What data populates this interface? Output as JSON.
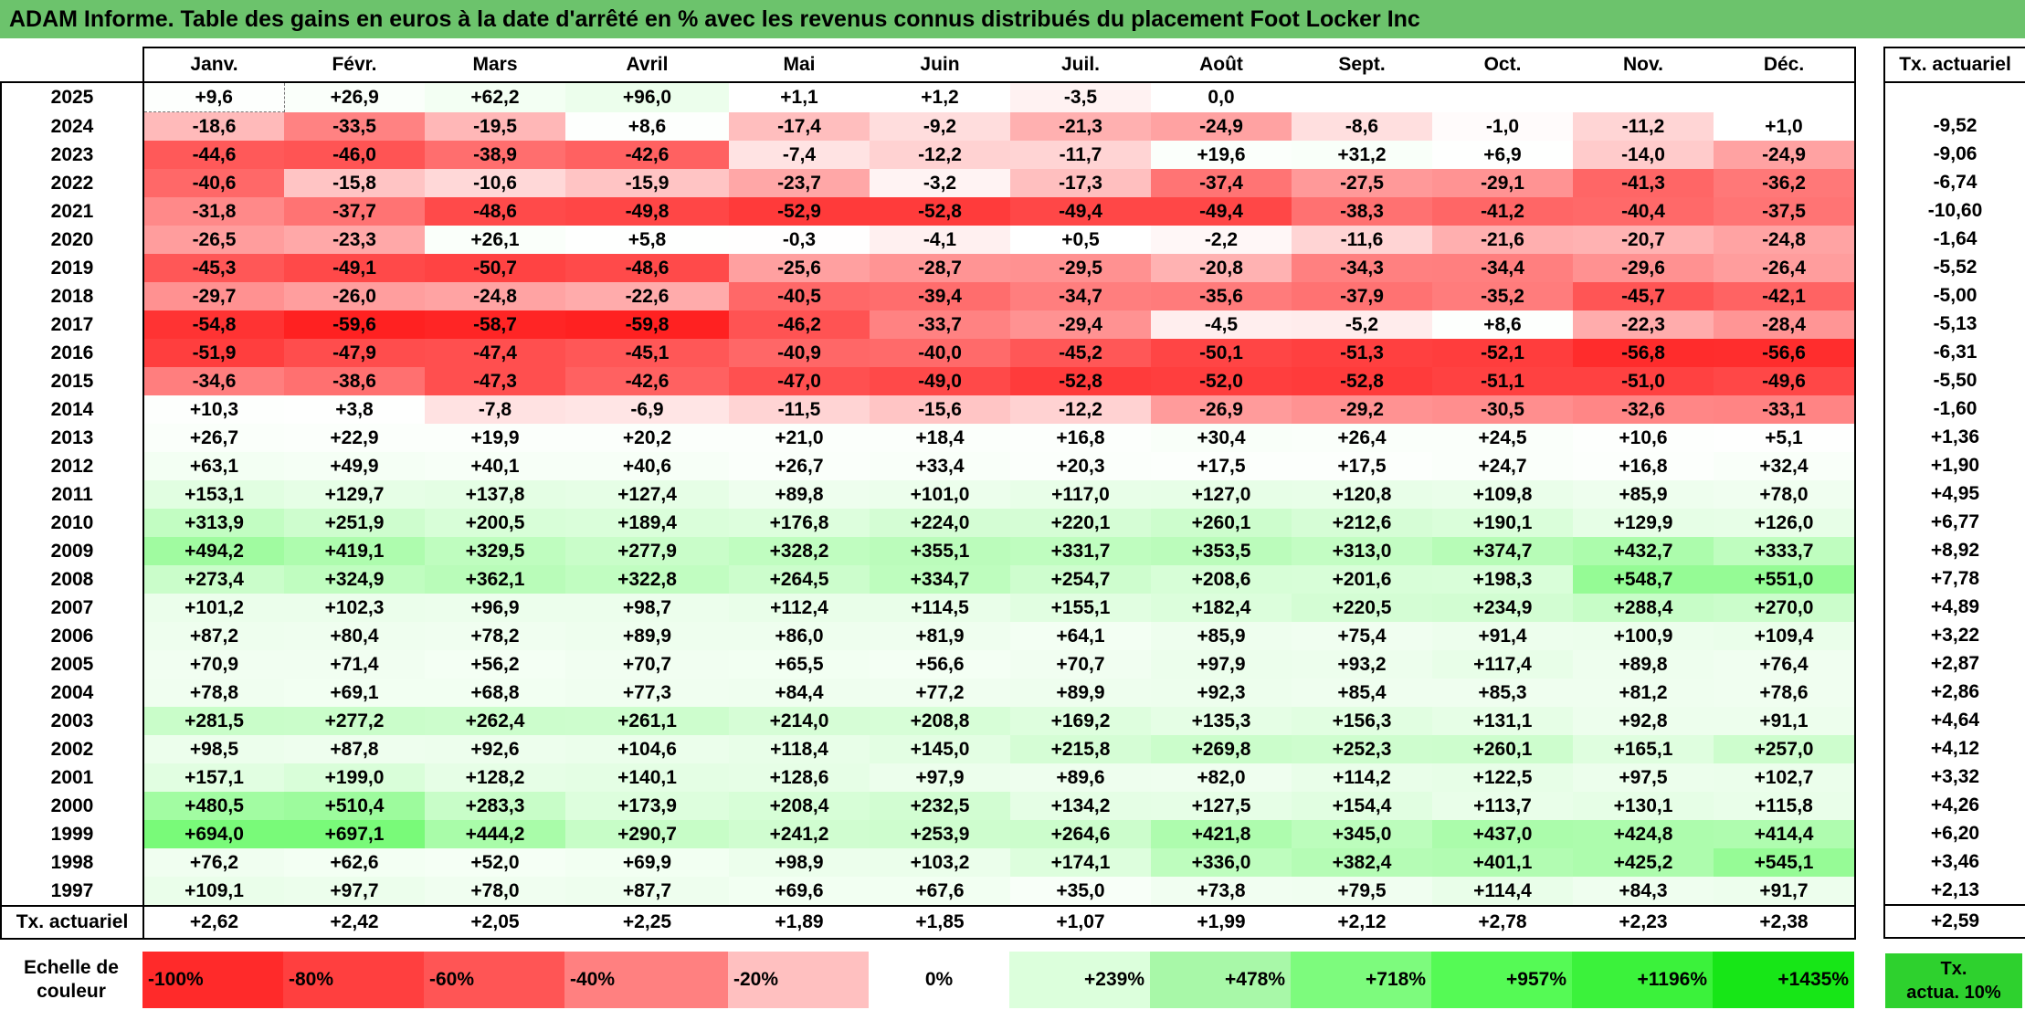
{
  "title": "ADAM Informe. Table des gains en euros à la date d'arrêté en % avec les revenus connus distribués du placement Foot Locker Inc",
  "months": [
    "Janv.",
    "Févr.",
    "Mars",
    "Avril",
    "Mai",
    "Juin",
    "Juil.",
    "Août",
    "Sept.",
    "Oct.",
    "Nov.",
    "Déc."
  ],
  "tx_header": "Tx. actuariel",
  "rows": [
    {
      "year": "2025",
      "values": [
        "+9,6",
        "+26,9",
        "+62,2",
        "+96,0",
        "+1,1",
        "+1,2",
        "-3,5",
        "0,0",
        "",
        "",
        "",
        ""
      ],
      "tx": ""
    },
    {
      "year": "2024",
      "values": [
        "-18,6",
        "-33,5",
        "-19,5",
        "+8,6",
        "-17,4",
        "-9,2",
        "-21,3",
        "-24,9",
        "-8,6",
        "-1,0",
        "-11,2",
        "+1,0"
      ],
      "tx": "-9,52"
    },
    {
      "year": "2023",
      "values": [
        "-44,6",
        "-46,0",
        "-38,9",
        "-42,6",
        "-7,4",
        "-12,2",
        "-11,7",
        "+19,6",
        "+31,2",
        "+6,9",
        "-14,0",
        "-24,9"
      ],
      "tx": "-9,06"
    },
    {
      "year": "2022",
      "values": [
        "-40,6",
        "-15,8",
        "-10,6",
        "-15,9",
        "-23,7",
        "-3,2",
        "-17,3",
        "-37,4",
        "-27,5",
        "-29,1",
        "-41,3",
        "-36,2"
      ],
      "tx": "-6,74"
    },
    {
      "year": "2021",
      "values": [
        "-31,8",
        "-37,7",
        "-48,6",
        "-49,8",
        "-52,9",
        "-52,8",
        "-49,4",
        "-49,4",
        "-38,3",
        "-41,2",
        "-40,4",
        "-37,5"
      ],
      "tx": "-10,60"
    },
    {
      "year": "2020",
      "values": [
        "-26,5",
        "-23,3",
        "+26,1",
        "+5,8",
        "-0,3",
        "-4,1",
        "+0,5",
        "-2,2",
        "-11,6",
        "-21,6",
        "-20,7",
        "-24,8"
      ],
      "tx": "-1,64"
    },
    {
      "year": "2019",
      "values": [
        "-45,3",
        "-49,1",
        "-50,7",
        "-48,6",
        "-25,6",
        "-28,7",
        "-29,5",
        "-20,8",
        "-34,3",
        "-34,4",
        "-29,6",
        "-26,4"
      ],
      "tx": "-5,52"
    },
    {
      "year": "2018",
      "values": [
        "-29,7",
        "-26,0",
        "-24,8",
        "-22,6",
        "-40,5",
        "-39,4",
        "-34,7",
        "-35,6",
        "-37,9",
        "-35,2",
        "-45,7",
        "-42,1"
      ],
      "tx": "-5,00"
    },
    {
      "year": "2017",
      "values": [
        "-54,8",
        "-59,6",
        "-58,7",
        "-59,8",
        "-46,2",
        "-33,7",
        "-29,4",
        "-4,5",
        "-5,2",
        "+8,6",
        "-22,3",
        "-28,4"
      ],
      "tx": "-5,13"
    },
    {
      "year": "2016",
      "values": [
        "-51,9",
        "-47,9",
        "-47,4",
        "-45,1",
        "-40,9",
        "-40,0",
        "-45,2",
        "-50,1",
        "-51,3",
        "-52,1",
        "-56,8",
        "-56,6"
      ],
      "tx": "-6,31"
    },
    {
      "year": "2015",
      "values": [
        "-34,6",
        "-38,6",
        "-47,3",
        "-42,6",
        "-47,0",
        "-49,0",
        "-52,8",
        "-52,0",
        "-52,8",
        "-51,1",
        "-51,0",
        "-49,6"
      ],
      "tx": "-5,50"
    },
    {
      "year": "2014",
      "values": [
        "+10,3",
        "+3,8",
        "-7,8",
        "-6,9",
        "-11,5",
        "-15,6",
        "-12,2",
        "-26,9",
        "-29,2",
        "-30,5",
        "-32,6",
        "-33,1"
      ],
      "tx": "-1,60"
    },
    {
      "year": "2013",
      "values": [
        "+26,7",
        "+22,9",
        "+19,9",
        "+20,2",
        "+21,0",
        "+18,4",
        "+16,8",
        "+30,4",
        "+26,4",
        "+24,5",
        "+10,6",
        "+5,1"
      ],
      "tx": "+1,36"
    },
    {
      "year": "2012",
      "values": [
        "+63,1",
        "+49,9",
        "+40,1",
        "+40,6",
        "+26,7",
        "+33,4",
        "+20,3",
        "+17,5",
        "+17,5",
        "+24,7",
        "+16,8",
        "+32,4"
      ],
      "tx": "+1,90"
    },
    {
      "year": "2011",
      "values": [
        "+153,1",
        "+129,7",
        "+137,8",
        "+127,4",
        "+89,8",
        "+101,0",
        "+117,0",
        "+127,0",
        "+120,8",
        "+109,8",
        "+85,9",
        "+78,0"
      ],
      "tx": "+4,95"
    },
    {
      "year": "2010",
      "values": [
        "+313,9",
        "+251,9",
        "+200,5",
        "+189,4",
        "+176,8",
        "+224,0",
        "+220,1",
        "+260,1",
        "+212,6",
        "+190,1",
        "+129,9",
        "+126,0"
      ],
      "tx": "+6,77"
    },
    {
      "year": "2009",
      "values": [
        "+494,2",
        "+419,1",
        "+329,5",
        "+277,9",
        "+328,2",
        "+355,1",
        "+331,7",
        "+353,5",
        "+313,0",
        "+374,7",
        "+432,7",
        "+333,7"
      ],
      "tx": "+8,92"
    },
    {
      "year": "2008",
      "values": [
        "+273,4",
        "+324,9",
        "+362,1",
        "+322,8",
        "+264,5",
        "+334,7",
        "+254,7",
        "+208,6",
        "+201,6",
        "+198,3",
        "+548,7",
        "+551,0"
      ],
      "tx": "+7,78"
    },
    {
      "year": "2007",
      "values": [
        "+101,2",
        "+102,3",
        "+96,9",
        "+98,7",
        "+112,4",
        "+114,5",
        "+155,1",
        "+182,4",
        "+220,5",
        "+234,9",
        "+288,4",
        "+270,0"
      ],
      "tx": "+4,89"
    },
    {
      "year": "2006",
      "values": [
        "+87,2",
        "+80,4",
        "+78,2",
        "+89,9",
        "+86,0",
        "+81,9",
        "+64,1",
        "+85,9",
        "+75,4",
        "+91,4",
        "+100,9",
        "+109,4"
      ],
      "tx": "+3,22"
    },
    {
      "year": "2005",
      "values": [
        "+70,9",
        "+71,4",
        "+56,2",
        "+70,7",
        "+65,5",
        "+56,6",
        "+70,7",
        "+97,9",
        "+93,2",
        "+117,4",
        "+89,8",
        "+76,4"
      ],
      "tx": "+2,87"
    },
    {
      "year": "2004",
      "values": [
        "+78,8",
        "+69,1",
        "+68,8",
        "+77,3",
        "+84,4",
        "+77,2",
        "+89,9",
        "+92,3",
        "+85,4",
        "+85,3",
        "+81,2",
        "+78,6"
      ],
      "tx": "+2,86"
    },
    {
      "year": "2003",
      "values": [
        "+281,5",
        "+277,2",
        "+262,4",
        "+261,1",
        "+214,0",
        "+208,8",
        "+169,2",
        "+135,3",
        "+156,3",
        "+131,1",
        "+92,8",
        "+91,1"
      ],
      "tx": "+4,64"
    },
    {
      "year": "2002",
      "values": [
        "+98,5",
        "+87,8",
        "+92,6",
        "+104,6",
        "+118,4",
        "+145,0",
        "+215,8",
        "+269,8",
        "+252,3",
        "+260,1",
        "+165,1",
        "+257,0"
      ],
      "tx": "+4,12"
    },
    {
      "year": "2001",
      "values": [
        "+157,1",
        "+199,0",
        "+128,2",
        "+140,1",
        "+128,6",
        "+97,9",
        "+89,6",
        "+82,0",
        "+114,2",
        "+122,5",
        "+97,5",
        "+102,7"
      ],
      "tx": "+3,32"
    },
    {
      "year": "2000",
      "values": [
        "+480,5",
        "+510,4",
        "+283,3",
        "+173,9",
        "+208,4",
        "+232,5",
        "+134,2",
        "+127,5",
        "+154,4",
        "+113,7",
        "+130,1",
        "+115,8"
      ],
      "tx": "+4,26"
    },
    {
      "year": "1999",
      "values": [
        "+694,0",
        "+697,1",
        "+444,2",
        "+290,7",
        "+241,2",
        "+253,9",
        "+264,6",
        "+421,8",
        "+345,0",
        "+437,0",
        "+424,8",
        "+414,4"
      ],
      "tx": "+6,20"
    },
    {
      "year": "1998",
      "values": [
        "+76,2",
        "+62,6",
        "+52,0",
        "+69,9",
        "+98,9",
        "+103,2",
        "+174,1",
        "+336,0",
        "+382,4",
        "+401,1",
        "+425,2",
        "+545,1"
      ],
      "tx": "+3,46"
    },
    {
      "year": "1997",
      "values": [
        "+109,1",
        "+97,7",
        "+78,0",
        "+87,7",
        "+69,6",
        "+67,6",
        "+35,0",
        "+73,8",
        "+79,5",
        "+114,4",
        "+84,3",
        "+91,7"
      ],
      "tx": "+2,13"
    }
  ],
  "tx_row": {
    "label": "Tx. actuariel",
    "values": [
      "+2,62",
      "+2,42",
      "+2,05",
      "+2,25",
      "+1,89",
      "+1,85",
      "+1,07",
      "+1,99",
      "+2,12",
      "+2,78",
      "+2,23",
      "+2,38"
    ],
    "total": "+2,59"
  },
  "legend": {
    "label_line1": "Echelle de",
    "label_line2": "couleur",
    "items": [
      {
        "text": "-100%",
        "color": "#ff2a2a"
      },
      {
        "text": "-80%",
        "color": "#ff3f3f"
      },
      {
        "text": "-60%",
        "color": "#ff5555"
      },
      {
        "text": "-40%",
        "color": "#ff8080"
      },
      {
        "text": "-20%",
        "color": "#ffc0c0"
      },
      {
        "text": "0%",
        "color": "#ffffff"
      },
      {
        "text": "+239%",
        "color": "#dcffdc"
      },
      {
        "text": "+478%",
        "color": "#a8f8a8"
      },
      {
        "text": "+718%",
        "color": "#7dfb7d"
      },
      {
        "text": "+957%",
        "color": "#55fa55"
      },
      {
        "text": "+1196%",
        "color": "#3bf23b"
      },
      {
        "text": "+1435%",
        "color": "#17e617"
      }
    ],
    "tx_line1": "Tx.",
    "tx_line2": "actua. 10%",
    "tx_color": "#2ed12e"
  },
  "colors": {
    "title_bg": "#6cc36c",
    "negative_max": "#ff2020",
    "positive_max": "#17e617"
  }
}
